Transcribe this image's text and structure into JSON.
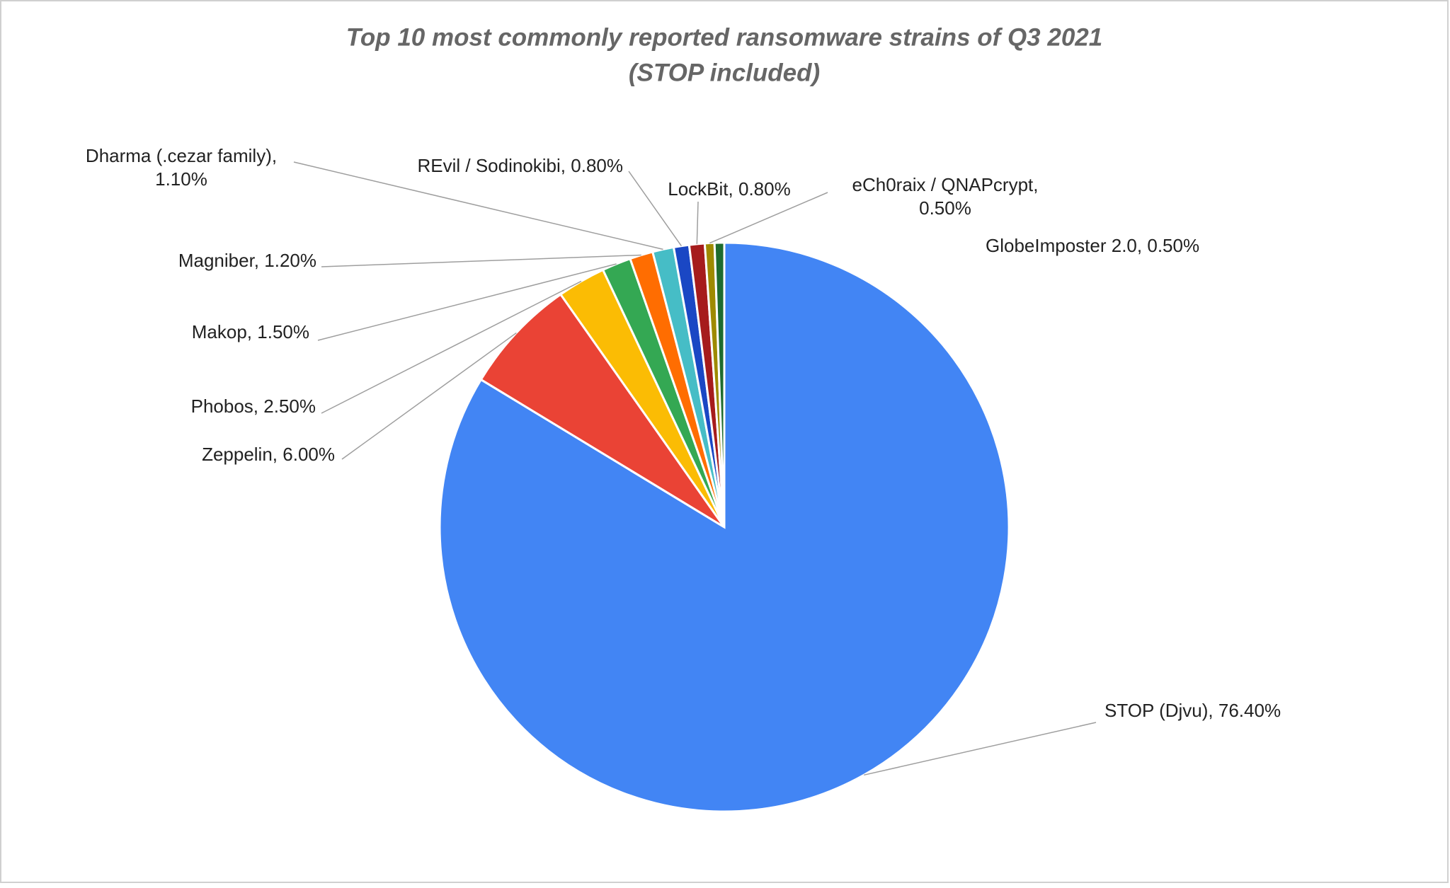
{
  "chart_data": {
    "type": "pie",
    "title": "Top 10 most commonly reported ransomware strains of Q3 2021",
    "subtitle": "(STOP included)",
    "categories": [
      "STOP (Djvu),",
      "Zeppelin,",
      "Phobos,",
      "Makop,",
      "Magniber,",
      "Dharma (.cezar family),",
      "REvil / Sodinokibi,",
      "LockBit,",
      "eCh0raix / QNAPcrypt,",
      "GlobeImposter 2.0,"
    ],
    "values": [
      76.4,
      6.0,
      2.5,
      1.5,
      1.2,
      1.1,
      0.8,
      0.8,
      0.5,
      0.5
    ],
    "value_labels": [
      "76.40%",
      "6.00%",
      "2.50%",
      "1.50%",
      "1.20%",
      "1.10%",
      "0.80%",
      "0.80%",
      "0.50%",
      "0.50%"
    ],
    "colors": [
      "#4285f4",
      "#ea4335",
      "#fbbc04",
      "#34a853",
      "#ff6d01",
      "#46bdc6",
      "#1a47c4",
      "#a61c1c",
      "#9e8a00",
      "#1e6b2e"
    ]
  }
}
